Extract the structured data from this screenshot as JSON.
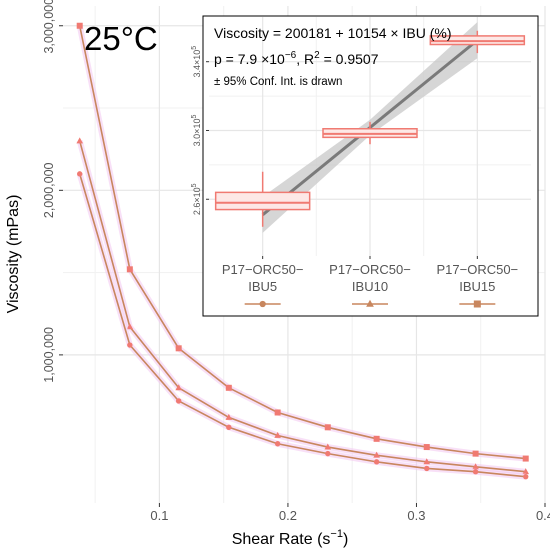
{
  "chart_data": [
    {
      "type": "line",
      "title": "25°C",
      "xlabel": "Shear Rate (s",
      "xlabel_sup": "−1",
      "xlabel_close": ")",
      "ylabel": "Viscosity (mPas)",
      "x_ticks": [
        "0.1",
        "0.2",
        "0.3",
        "0.4"
      ],
      "x_tick_values": [
        0.1,
        0.2,
        0.3,
        0.4
      ],
      "y_ticks": [
        "1,000,000",
        "2,000,000",
        "3,000,000"
      ],
      "y_tick_values": [
        1000000,
        2000000,
        3000000
      ],
      "xlim": [
        0.025,
        0.4
      ],
      "ylim": [
        100000,
        3120000
      ],
      "grid": true,
      "series": [
        {
          "marker": "square",
          "x": [
            0.038,
            0.077,
            0.115,
            0.154,
            0.192,
            0.231,
            0.269,
            0.308,
            0.346,
            0.385
          ],
          "values": [
            3000000,
            1520000,
            1040000,
            800000,
            650000,
            560000,
            490000,
            440000,
            400000,
            370000
          ]
        },
        {
          "marker": "triangle",
          "x": [
            0.038,
            0.077,
            0.115,
            0.154,
            0.192,
            0.231,
            0.269,
            0.308,
            0.346,
            0.385
          ],
          "values": [
            2300000,
            1170000,
            800000,
            620000,
            510000,
            440000,
            390000,
            350000,
            320000,
            290000
          ]
        },
        {
          "marker": "circle",
          "x": [
            0.038,
            0.077,
            0.115,
            0.154,
            0.192,
            0.231,
            0.269,
            0.308,
            0.346,
            0.385
          ],
          "values": [
            2100000,
            1060000,
            720000,
            560000,
            460000,
            400000,
            350000,
            310000,
            290000,
            260000
          ]
        }
      ]
    },
    {
      "type": "boxplot",
      "equation": "Viscosity = 200181 + 10154 × IBU (%)",
      "stats_prefix": "p = 7.9 ×10",
      "stats_p_exp": "−6",
      "stats_r2_label": ", R",
      "stats_r2_sup": "2",
      "stats_r2_value": " = 0.9507",
      "ci_note": "± 95% Conf. Int. is drawn",
      "y_ticks": [
        {
          "mant": "2.6×10",
          "exp": "5"
        },
        {
          "mant": "3.0×10",
          "exp": "5"
        },
        {
          "mant": "3.4×10",
          "exp": "5"
        }
      ],
      "y_tick_values": [
        260000,
        300000,
        340000
      ],
      "ylim": [
        227000,
        366000
      ],
      "categories": [
        {
          "line1": "P17−ORC50−",
          "line2": "IBU5",
          "marker": "circle",
          "ibu": 5,
          "median": 258000,
          "q1": 254000,
          "q3": 264000,
          "min": 244000,
          "max": 276000
        },
        {
          "line1": "P17−ORC50−",
          "line2": "IBU10",
          "marker": "triangle",
          "ibu": 10,
          "median": 298000,
          "q1": 296000,
          "q3": 301000,
          "min": 292000,
          "max": 305000
        },
        {
          "line1": "P17−ORC50−",
          "line2": "IBU15",
          "marker": "square",
          "ibu": 15,
          "median": 352000,
          "q1": 350000,
          "q3": 355000,
          "min": 345000,
          "max": 358000
        }
      ],
      "fit": {
        "x_start": 5,
        "x_end": 15,
        "y_start": 250951,
        "y_end": 352491,
        "ci_halfwidth_start": 10500,
        "ci_halfwidth_mid": 4500,
        "ci_halfwidth_end": 10500
      }
    }
  ],
  "colors": {
    "line": "#c8865e",
    "marker": "#f07a72",
    "box_fill": "#fde8e6",
    "box_stroke": "#f07a72",
    "fit_line": "#7a7a7a",
    "ci_band": "#c8c8c8",
    "grid": "#e6e6e6",
    "axis_text": "#555555",
    "text": "#000000",
    "glow": "#f3c6f0"
  }
}
